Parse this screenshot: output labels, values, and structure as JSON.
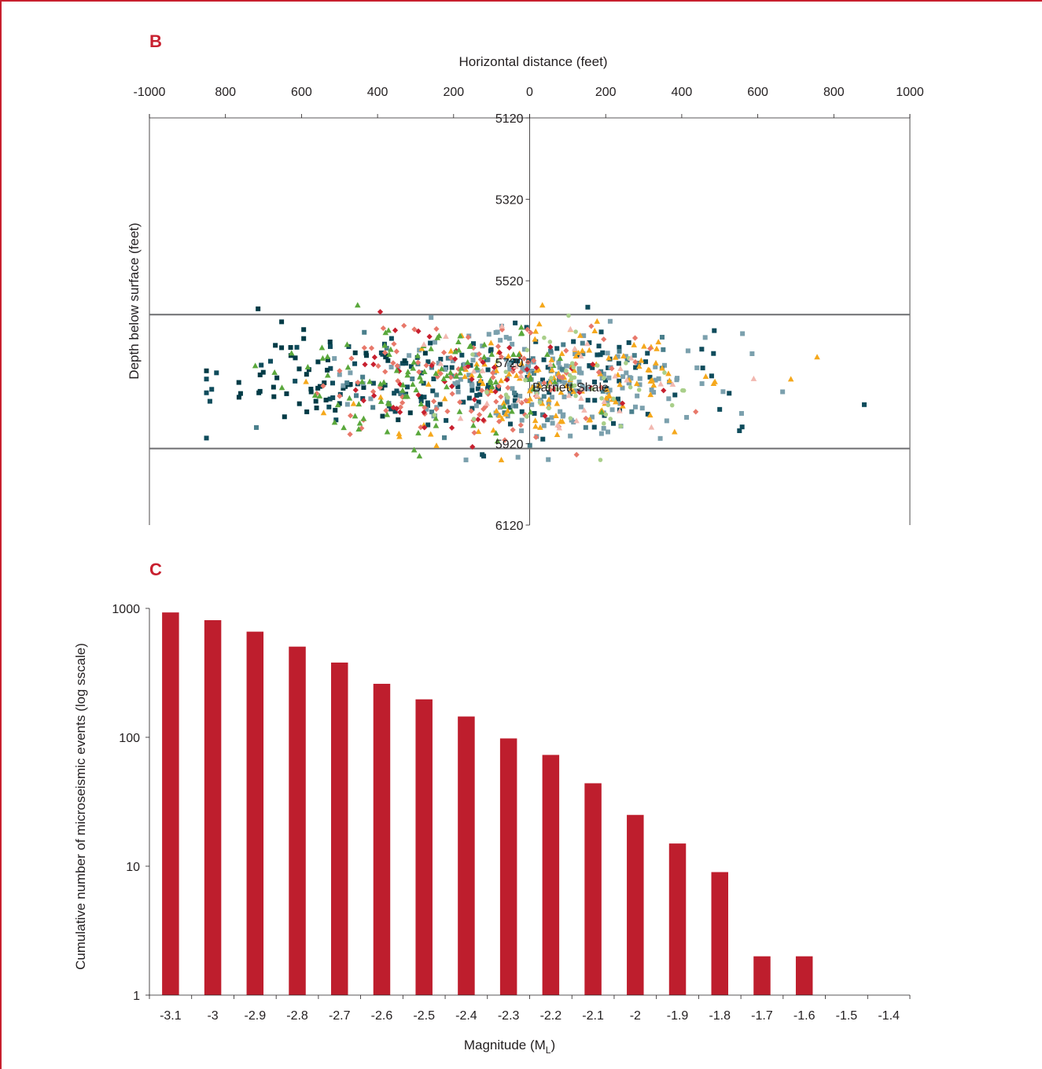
{
  "panel_b": {
    "letter": "B",
    "x_axis_title": "Horizontal distance (feet)",
    "y_axis_title": "Depth below surface (feet)",
    "x_tick_labels": [
      "-1000",
      "800",
      "600",
      "400",
      "200",
      "0",
      "200",
      "400",
      "600",
      "800",
      "1000"
    ],
    "y_tick_labels": [
      "5120",
      "5320",
      "5520",
      "5720",
      "5920",
      "6120"
    ],
    "annotation": "Barnett Shale"
  },
  "panel_c": {
    "letter": "C",
    "x_axis_title": "Magnitude (M",
    "x_axis_title_sub": "L",
    "x_axis_title_end": ")",
    "y_axis_title": "Cumulative number of microseismic events (log sscale)",
    "y_tick_labels": [
      "1",
      "10",
      "100",
      "1000"
    ]
  },
  "colors": {
    "frame": "#c8202f",
    "bar": "#be1e2d",
    "axis": "#231f20",
    "shale_line": "#6d6e71",
    "scatter_palette": [
      "#0f4c5c",
      "#003b46",
      "#7ba0ad",
      "#4a7f8c",
      "#f5a81c",
      "#e8786a",
      "#c8202f",
      "#5aa83c",
      "#a9cf8a",
      "#f2b8b0"
    ]
  },
  "chart_data": [
    {
      "type": "scatter",
      "title": "",
      "xlabel": "Horizontal distance (feet)",
      "ylabel": "Depth below surface (feet)",
      "xlim": [
        -1000,
        1000
      ],
      "ylim": [
        6120,
        5120
      ],
      "x_ticks": [
        -1000,
        -800,
        -600,
        -400,
        -200,
        0,
        200,
        400,
        600,
        800,
        1000
      ],
      "x_tick_labels": [
        "-1000",
        "800",
        "600",
        "400",
        "200",
        "0",
        "200",
        "400",
        "600",
        "800",
        "1000"
      ],
      "y_ticks": [
        5120,
        5320,
        5520,
        5720,
        5920,
        6120
      ],
      "reference_lines": [
        {
          "axis": "y",
          "value": 5603
        },
        {
          "axis": "y",
          "value": 5932
        }
      ],
      "annotations": [
        {
          "text": "Barnett Shale",
          "x": 500,
          "y": 5806
        }
      ],
      "point_cloud": {
        "approx_count": 950,
        "x_range": [
          -850,
          880
        ],
        "depth_range": [
          5580,
          5960
        ],
        "center_depth": 5770,
        "marker_shapes": [
          "square",
          "diamond",
          "triangle",
          "circle"
        ]
      },
      "grid": false
    },
    {
      "type": "bar",
      "title": "",
      "xlabel": "Magnitude (ML)",
      "ylabel": "Cumulative number of microseismic events (log sscale)",
      "y_scale": "log",
      "ylim": [
        1,
        1000
      ],
      "categories": [
        "-3.1",
        "-3",
        "-2.9",
        "-2.8",
        "-2.7",
        "-2.6",
        "-2.5",
        "-2.4",
        "-2.3",
        "-2.2",
        "-2.1",
        "-2",
        "-1.9",
        "-1.8",
        "-1.7",
        "-1.6",
        "-1.5",
        "-1.4"
      ],
      "values": [
        930,
        810,
        660,
        505,
        380,
        260,
        197,
        145,
        98,
        73,
        44,
        25,
        15,
        9,
        2,
        2,
        0,
        0
      ],
      "grid": false
    }
  ]
}
